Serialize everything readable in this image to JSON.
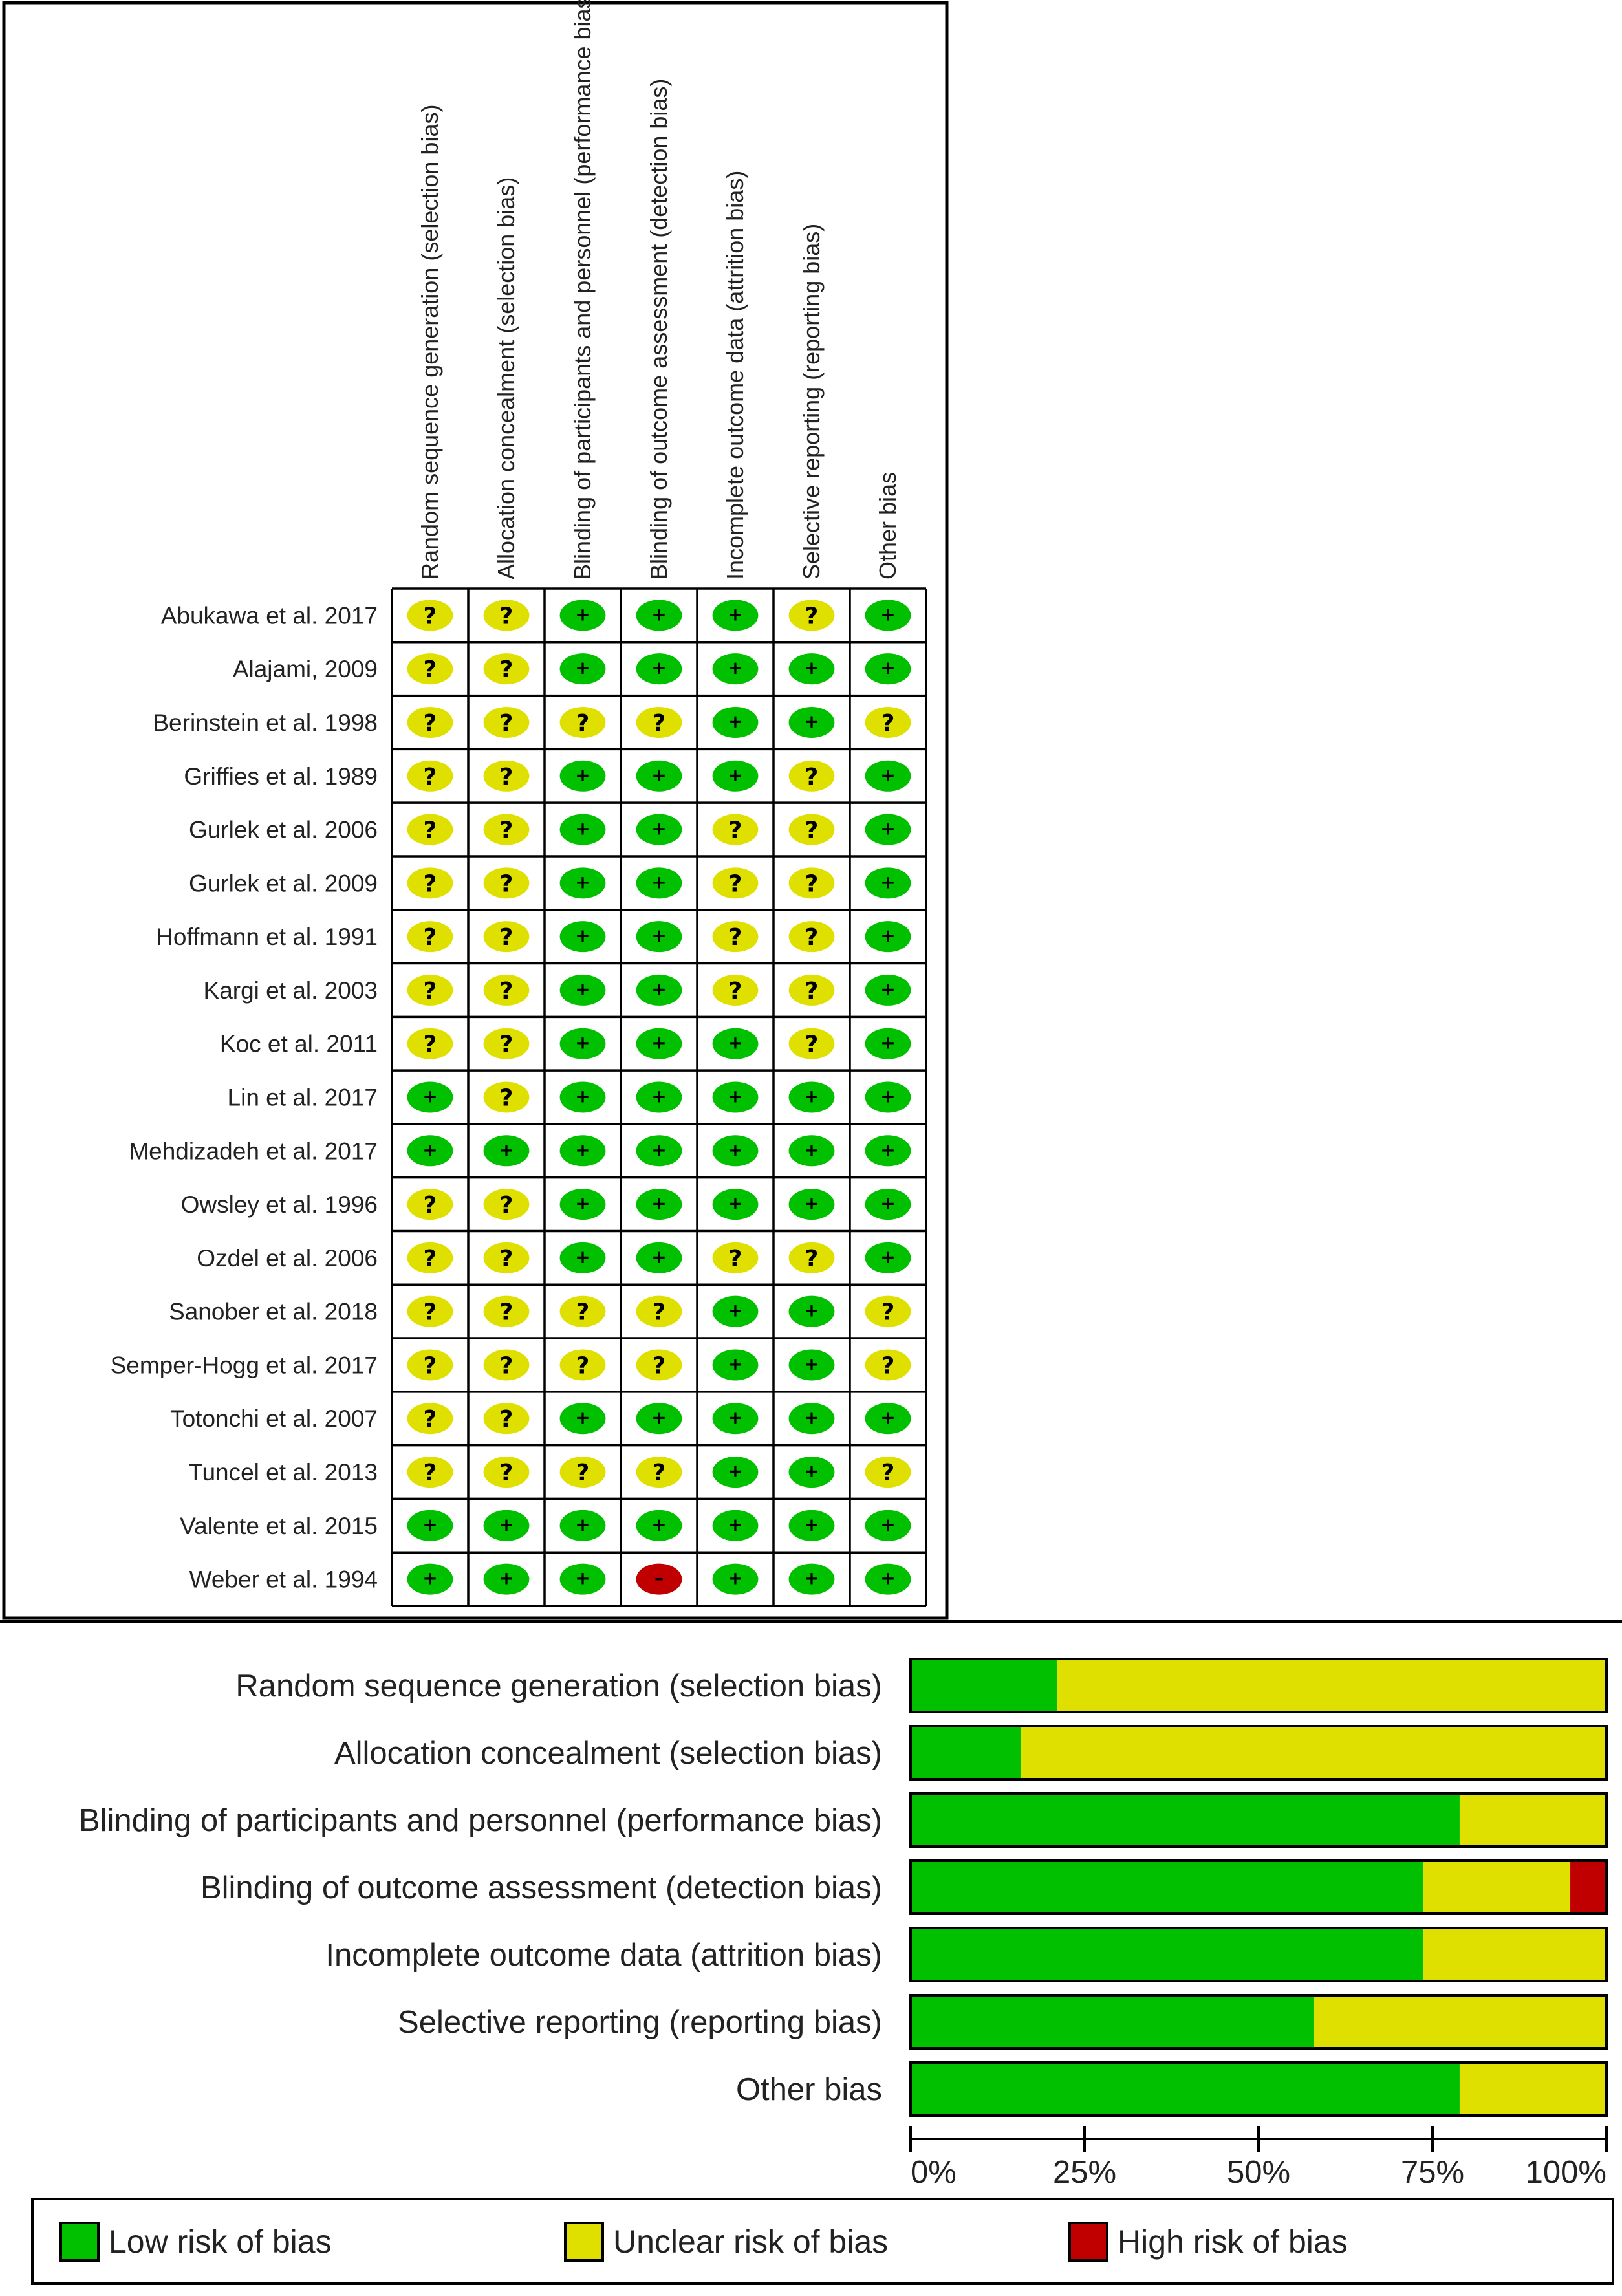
{
  "chart_data": [
    {
      "type": "table",
      "columns": [
        "Random sequence generation (selection bias)",
        "Allocation concealment (selection bias)",
        "Blinding of participants and personnel (performance bias)",
        "Blinding of outcome assessment (detection bias)",
        "Incomplete outcome data (attrition bias)",
        "Selective reporting (reporting bias)",
        "Other bias"
      ],
      "rows": [
        "Abukawa et al. 2017",
        "Alajami, 2009",
        "Berinstein et al. 1998",
        "Griffies et al. 1989",
        "Gurlek et al. 2006",
        "Gurlek et al. 2009",
        "Hoffmann et al. 1991",
        "Kargi et al. 2003",
        "Koc et al. 2011",
        "Lin et al. 2017",
        "Mehdizadeh et al. 2017",
        "Owsley et al. 1996",
        "Ozdel et al. 2006",
        "Sanober et al. 2018",
        "Semper-Hogg et al. 2017",
        "Totonchi et al. 2007",
        "Tuncel et al. 2013",
        "Valente et al. 2015",
        "Weber et al. 1994"
      ],
      "judgements": [
        [
          "?",
          "?",
          "+",
          "+",
          "+",
          "?",
          "+"
        ],
        [
          "?",
          "?",
          "+",
          "+",
          "+",
          "+",
          "+"
        ],
        [
          "?",
          "?",
          "?",
          "?",
          "+",
          "+",
          "?"
        ],
        [
          "?",
          "?",
          "+",
          "+",
          "+",
          "?",
          "+"
        ],
        [
          "?",
          "?",
          "+",
          "+",
          "?",
          "?",
          "+"
        ],
        [
          "?",
          "?",
          "+",
          "+",
          "?",
          "?",
          "+"
        ],
        [
          "?",
          "?",
          "+",
          "+",
          "?",
          "?",
          "+"
        ],
        [
          "?",
          "?",
          "+",
          "+",
          "?",
          "?",
          "+"
        ],
        [
          "?",
          "?",
          "+",
          "+",
          "+",
          "?",
          "+"
        ],
        [
          "+",
          "?",
          "+",
          "+",
          "+",
          "+",
          "+"
        ],
        [
          "+",
          "+",
          "+",
          "+",
          "+",
          "+",
          "+"
        ],
        [
          "?",
          "?",
          "+",
          "+",
          "+",
          "+",
          "+"
        ],
        [
          "?",
          "?",
          "+",
          "+",
          "?",
          "?",
          "+"
        ],
        [
          "?",
          "?",
          "?",
          "?",
          "+",
          "+",
          "?"
        ],
        [
          "?",
          "?",
          "?",
          "?",
          "+",
          "+",
          "?"
        ],
        [
          "?",
          "?",
          "+",
          "+",
          "+",
          "+",
          "+"
        ],
        [
          "?",
          "?",
          "?",
          "?",
          "+",
          "+",
          "?"
        ],
        [
          "+",
          "+",
          "+",
          "+",
          "+",
          "+",
          "+"
        ],
        [
          "+",
          "+",
          "+",
          "-",
          "+",
          "+",
          "+"
        ]
      ]
    },
    {
      "type": "bar",
      "stacked": true,
      "orientation": "horizontal",
      "categories": [
        "Random sequence generation (selection bias)",
        "Allocation concealment (selection bias)",
        "Blinding of participants and personnel (performance bias)",
        "Blinding of outcome assessment (detection bias)",
        "Incomplete outcome data (attrition bias)",
        "Selective reporting (reporting bias)",
        "Other bias"
      ],
      "series": [
        {
          "name": "Low risk of bias",
          "color": "#00C000",
          "values": [
            21.1,
            15.8,
            78.9,
            73.7,
            73.7,
            57.9,
            78.9
          ]
        },
        {
          "name": "Unclear risk of bias",
          "color": "#E0E000",
          "values": [
            78.9,
            84.2,
            21.1,
            21.1,
            26.3,
            42.1,
            21.1
          ]
        },
        {
          "name": "High risk of bias",
          "color": "#C00000",
          "values": [
            0,
            0,
            0,
            5.3,
            0,
            0,
            0
          ]
        }
      ],
      "xlim": [
        0,
        100
      ],
      "xticks": [
        "0%",
        "25%",
        "50%",
        "75%",
        "100%"
      ],
      "legend": "bottom"
    }
  ],
  "colors": {
    "low": "#00C000",
    "unclear": "#E0E000",
    "high": "#C00000"
  }
}
